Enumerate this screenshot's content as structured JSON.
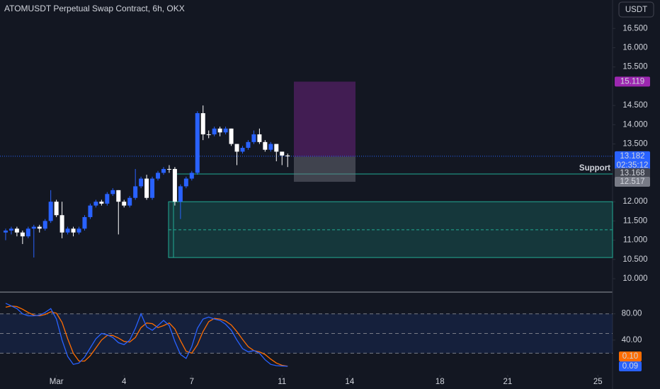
{
  "chart_data": [
    {
      "type": "candlestick",
      "title": "ATOMUSDT Perpetual Swap Contract, 6h, OKX",
      "currency": "USDT",
      "x": [
        -1.25,
        -1,
        -0.75,
        -0.5,
        -0.25,
        0,
        0.25,
        0.5,
        0.75,
        1,
        1.25,
        1.5,
        1.75,
        2,
        2.25,
        2.5,
        2.75,
        3,
        3.25,
        3.5,
        3.75,
        4,
        4.25,
        4.5,
        4.75,
        5,
        5.25,
        5.5,
        5.75,
        6,
        6.25,
        6.5,
        6.75,
        7,
        7.25,
        7.5,
        7.75,
        8,
        8.25,
        8.5,
        8.75,
        9,
        9.25,
        9.5,
        9.75,
        10,
        10.25,
        10.5,
        10.75,
        11,
        11.25
      ],
      "open": [
        11.2,
        11.25,
        11.3,
        11.2,
        11.1,
        11.3,
        11.35,
        11.3,
        11.5,
        12.0,
        11.65,
        11.2,
        11.3,
        11.2,
        11.3,
        11.6,
        11.9,
        12.0,
        11.95,
        12.2,
        12.3,
        12.0,
        11.9,
        12.1,
        12.4,
        12.6,
        12.1,
        12.6,
        12.75,
        12.85,
        12.85,
        12.0,
        12.4,
        12.6,
        12.75,
        14.3,
        13.75,
        13.75,
        13.9,
        13.8,
        13.9,
        13.5,
        13.3,
        13.4,
        13.55,
        13.75,
        13.55,
        13.35,
        13.5,
        13.3,
        13.2
      ],
      "high": [
        11.3,
        11.35,
        11.35,
        11.25,
        11.35,
        11.4,
        11.4,
        11.55,
        12.3,
        12.05,
        12.0,
        11.35,
        11.35,
        11.35,
        11.65,
        11.95,
        12.05,
        12.05,
        12.25,
        12.35,
        12.3,
        12.05,
        12.15,
        12.85,
        12.65,
        12.7,
        12.65,
        12.8,
        12.9,
        12.95,
        12.9,
        12.45,
        12.65,
        12.8,
        14.35,
        14.5,
        13.85,
        13.95,
        13.95,
        13.95,
        13.9,
        13.5,
        13.45,
        13.6,
        13.85,
        13.9,
        13.6,
        13.55,
        13.5,
        13.3,
        13.25
      ],
      "low": [
        11.0,
        11.15,
        11.1,
        10.9,
        11.05,
        10.55,
        11.2,
        11.25,
        11.45,
        11.6,
        11.05,
        11.15,
        11.1,
        11.15,
        11.25,
        11.55,
        11.85,
        11.9,
        11.9,
        12.15,
        11.15,
        11.85,
        11.85,
        12.05,
        12.35,
        12.05,
        12.05,
        12.55,
        12.7,
        12.75,
        11.9,
        11.55,
        12.35,
        12.55,
        12.7,
        13.6,
        13.65,
        13.7,
        13.7,
        13.75,
        13.45,
        12.95,
        13.25,
        13.35,
        13.5,
        13.5,
        13.3,
        13.3,
        13.05,
        12.95,
        12.9
      ],
      "close": [
        11.25,
        11.3,
        11.2,
        11.1,
        11.3,
        11.35,
        11.3,
        11.5,
        12.0,
        11.65,
        11.2,
        11.3,
        11.2,
        11.3,
        11.6,
        11.9,
        12.0,
        11.95,
        12.2,
        12.3,
        12.0,
        11.9,
        12.1,
        12.4,
        12.6,
        12.1,
        12.6,
        12.75,
        12.85,
        12.85,
        12.0,
        12.4,
        12.6,
        12.75,
        14.3,
        13.75,
        13.75,
        13.9,
        13.8,
        13.9,
        13.5,
        13.3,
        13.4,
        13.55,
        13.75,
        13.55,
        13.35,
        13.5,
        13.3,
        13.2,
        13.18
      ],
      "up_color": "#2962ff",
      "down_color": "#ffffff",
      "xlim": [
        -1.5,
        25.65
      ],
      "xticks": [
        {
          "value": 1,
          "label": "Mar"
        },
        4,
        7,
        11,
        14,
        18,
        21,
        25
      ],
      "ylim": [
        9.67,
        17.24
      ],
      "yticks": [
        {
          "value": 16.5,
          "label": "16.500"
        },
        {
          "value": 16,
          "label": "16.000"
        },
        {
          "value": 15.5,
          "label": "15.500"
        },
        {
          "value": 14.5,
          "label": "14.500"
        },
        {
          "value": 14,
          "label": "14.000"
        },
        {
          "value": 13.5,
          "label": "13.500"
        },
        {
          "value": 12,
          "label": "12.000"
        },
        {
          "value": 11.5,
          "label": "11.500"
        },
        {
          "value": 11,
          "label": "11.000"
        },
        {
          "value": 10.5,
          "label": "10.500"
        },
        {
          "value": 10,
          "label": "10.000"
        }
      ],
      "last_price": {
        "value": 13.182,
        "countdown": "02:35:12",
        "color": "#2962ff"
      },
      "position": {
        "target": 15.119,
        "entry": 13.168,
        "stop": 12.517,
        "target_color": "#9c27b0",
        "stop_color": "#787b86"
      },
      "zone": {
        "low": 10.55,
        "high": 12.0,
        "mid": 11.27,
        "color": "#22ab94"
      },
      "support": {
        "label": "Support",
        "value": 12.72
      }
    },
    {
      "type": "line",
      "x": [
        -1.25,
        -1,
        -0.75,
        -0.5,
        -0.25,
        0,
        0.25,
        0.5,
        0.75,
        1,
        1.25,
        1.5,
        1.75,
        2,
        2.25,
        2.5,
        2.75,
        3,
        3.25,
        3.5,
        3.75,
        4,
        4.25,
        4.5,
        4.75,
        5,
        5.25,
        5.5,
        5.75,
        6,
        6.25,
        6.5,
        6.75,
        7,
        7.25,
        7.5,
        7.75,
        8,
        8.25,
        8.5,
        8.75,
        9,
        9.25,
        9.5,
        9.75,
        10,
        10.25,
        10.5,
        10.75,
        11,
        11.25
      ],
      "xlim": [
        -1.5,
        25.65
      ],
      "ylim": [
        -13,
        112
      ],
      "yticks": [
        {
          "value": 80,
          "label": "80.00"
        },
        {
          "value": 40,
          "label": "40.00"
        }
      ],
      "levels": [
        80,
        50,
        20
      ],
      "series": [
        {
          "color": "#2962ff",
          "values": [
            96,
            92,
            88,
            80,
            77,
            77,
            78,
            82,
            88,
            72,
            40,
            15,
            3,
            5,
            14,
            28,
            42,
            50,
            48,
            44,
            36,
            33,
            40,
            58,
            80,
            60,
            55,
            62,
            70,
            62,
            38,
            18,
            12,
            30,
            58,
            72,
            75,
            72,
            70,
            64,
            55,
            40,
            27,
            22,
            24,
            20,
            10,
            3,
            1,
            0.5,
            0.09
          ],
          "value_labels": [
            null,
            null,
            null,
            null,
            null,
            null,
            null,
            null,
            null,
            null,
            null,
            null,
            null,
            null,
            null,
            null,
            null,
            null,
            null,
            null,
            null,
            null,
            null,
            null,
            null,
            null,
            null,
            null,
            null,
            null,
            null,
            null,
            null,
            null,
            null,
            null,
            null,
            null,
            null,
            null,
            null,
            null,
            null,
            null,
            null,
            null,
            null,
            null,
            null,
            null,
            "0.09"
          ]
        },
        {
          "color": "#ff6d00",
          "values": [
            90,
            92,
            91,
            87,
            82,
            78,
            77,
            79,
            83,
            81,
            67,
            42,
            20,
            8,
            8,
            16,
            28,
            40,
            47,
            47,
            43,
            38,
            37,
            44,
            59,
            66,
            65,
            59,
            62,
            66,
            57,
            39,
            23,
            20,
            33,
            53,
            68,
            73,
            72,
            69,
            63,
            53,
            41,
            30,
            24,
            22,
            18,
            11,
            5,
            1.5,
            0.1
          ],
          "value_labels": [
            null,
            null,
            null,
            null,
            null,
            null,
            null,
            null,
            null,
            null,
            null,
            null,
            null,
            null,
            null,
            null,
            null,
            null,
            null,
            null,
            null,
            null,
            null,
            null,
            null,
            null,
            null,
            null,
            null,
            null,
            null,
            null,
            null,
            null,
            null,
            null,
            null,
            null,
            null,
            null,
            null,
            null,
            null,
            null,
            null,
            null,
            null,
            null,
            null,
            null,
            "0.10"
          ]
        }
      ]
    }
  ]
}
